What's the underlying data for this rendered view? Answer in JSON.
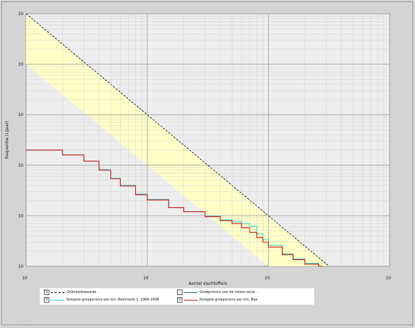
{
  "chart_data": {
    "type": "line",
    "xlabel": "Aantal slachtoffers",
    "ylabel": "frequentie (1/jaar)",
    "x_scale": "log",
    "y_scale": "log",
    "xlim": [
      1,
      1000
    ],
    "ylim": [
      1e-09,
      0.0001
    ],
    "x_tick_labels": [
      "10",
      "10",
      "10",
      "10"
    ],
    "x_tick_values": [
      1,
      10,
      100,
      1000
    ],
    "y_tick_labels": [
      "10",
      "10",
      "10",
      "10",
      "10",
      "10"
    ],
    "y_tick_values": [
      0.0001,
      1e-05,
      1e-06,
      1e-07,
      1e-08,
      1e-09
    ],
    "grid": true,
    "legend_position": "bottom",
    "orientation_band": {
      "name": "Oriëntatiewaarde",
      "upper_line": {
        "x": [
          1,
          100
        ],
        "y": [
          0.0001,
          1e-08
        ]
      },
      "lower_line": {
        "x": [
          1,
          100
        ],
        "y": [
          1e-05,
          1e-09
        ]
      },
      "fill_color": "#ffffc8",
      "line_color": "#000000"
    },
    "series": [
      {
        "name": "Noogste groepsrisico per km, Beetroute 1, 1966-2996",
        "color": "#31d6e0",
        "x": [
          1,
          2,
          3,
          4,
          5,
          6,
          8,
          10,
          15,
          20,
          30,
          40,
          50,
          60,
          70,
          80,
          90,
          100,
          130,
          160,
          200,
          260
        ],
        "y": [
          2e-07,
          1.6e-07,
          1.2e-07,
          8.2e-08,
          5.5e-08,
          4e-08,
          2.7e-08,
          2.1e-08,
          1.45e-08,
          1.2e-08,
          9.8e-09,
          8.4e-09,
          7.6e-09,
          7e-09,
          6.2e-09,
          4.4e-09,
          3.4e-09,
          2.6e-09,
          1.75e-09,
          1.4e-09,
          1.15e-09,
          1e-09
        ]
      },
      {
        "name": "Noogste groepsrisico per km, Bee",
        "color": "#d01010",
        "x": [
          1,
          2,
          3,
          4,
          5,
          6,
          8,
          10,
          15,
          20,
          30,
          40,
          50,
          60,
          70,
          80,
          90,
          100,
          130,
          160,
          200,
          260
        ],
        "y": [
          2e-07,
          1.6e-07,
          1.2e-07,
          8e-08,
          5.4e-08,
          3.9e-08,
          2.6e-08,
          2.05e-08,
          1.45e-08,
          1.2e-08,
          9.6e-09,
          8e-09,
          7e-09,
          5.8e-09,
          4.7e-09,
          3.7e-09,
          3e-09,
          2.4e-09,
          1.7e-09,
          1.35e-09,
          1.1e-09,
          1e-09
        ]
      }
    ]
  },
  "legend": {
    "item1_label": "Oriëntatiewaarde",
    "item2_label": "Groepsrisico van de totale route .",
    "item3_label": "Noogste groepsrisico per km, Beetroute 1, 1966-2996",
    "item4_label": "Noogste groepsrisico per km, Bee",
    "item1_check": "V",
    "item2_check": "",
    "item3_check": "V",
    "item4_check": "V"
  },
  "footer_mark": "-"
}
